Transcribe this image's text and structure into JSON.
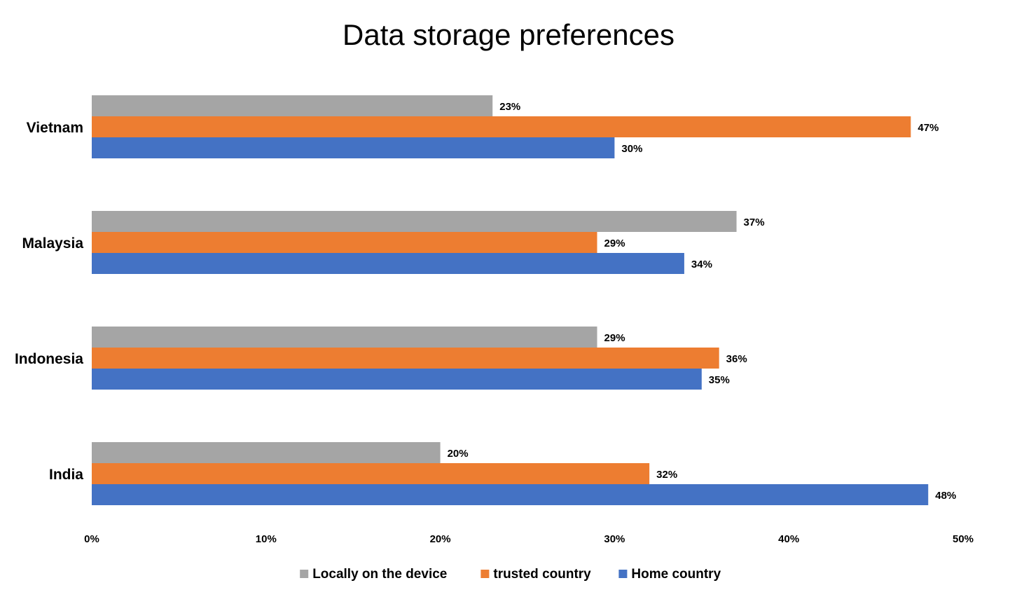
{
  "chart_data": {
    "type": "bar",
    "orientation": "horizontal",
    "title": "Data storage preferences",
    "categories": [
      "Vietnam",
      "Malaysia",
      "Indonesia",
      "India"
    ],
    "series": [
      {
        "name": "Locally on the device",
        "color": "#a5a5a5",
        "values": [
          23,
          37,
          29,
          20
        ]
      },
      {
        "name": "trusted country",
        "color": "#ed7d31",
        "values": [
          47,
          29,
          36,
          32
        ]
      },
      {
        "name": "Home country",
        "color": "#4472c4",
        "values": [
          30,
          34,
          35,
          48
        ]
      }
    ],
    "data_labels": {
      "Vietnam": [
        "23%",
        "47%",
        "30%"
      ],
      "Malaysia": [
        "37%",
        "29%",
        "34%"
      ],
      "Indonesia": [
        "29%",
        "36%",
        "35%"
      ],
      "India": [
        "20%",
        "32%",
        "48%"
      ]
    },
    "xlim": [
      0,
      50
    ],
    "x_ticks": [
      "0%",
      "10%",
      "20%",
      "30%",
      "40%",
      "50%"
    ],
    "grid": false,
    "legend_position": "bottom"
  }
}
